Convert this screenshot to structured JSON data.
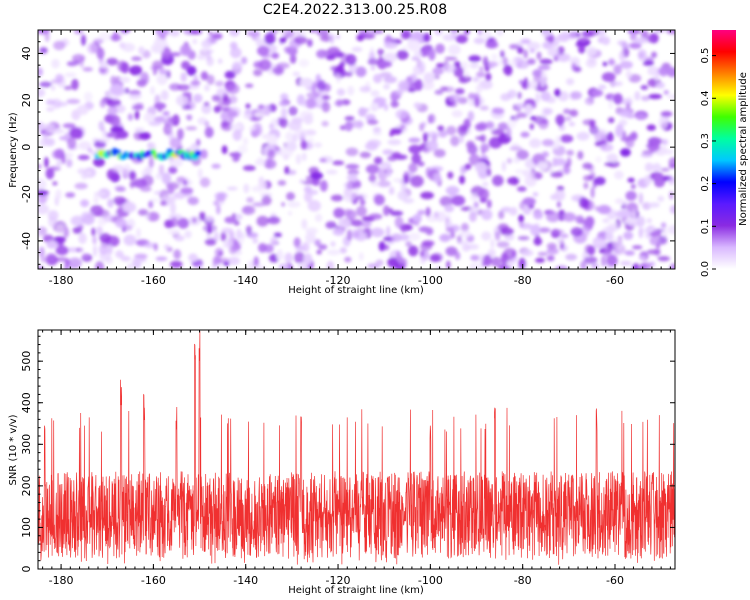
{
  "figure": {
    "title": "C2E4.2022.313.00.25.R08"
  },
  "chart_data": [
    {
      "type": "heatmap",
      "xlabel": "Height of straight line (km)",
      "ylabel": "Frequency (Hz)",
      "xlim": [
        -185,
        -47
      ],
      "ylim": [
        -52,
        50
      ],
      "x_ticks": [
        -180,
        -160,
        -140,
        -120,
        -100,
        -80,
        -60
      ],
      "y_ticks": [
        -40,
        -20,
        0,
        20,
        40
      ],
      "x_tick_labels": [
        "-180",
        "-160",
        "-140",
        "-120",
        "-100",
        "-80",
        "-60"
      ],
      "y_tick_labels": [
        "-40",
        "-20",
        "0",
        "20",
        "40"
      ],
      "colorbar": {
        "label": "Normalized spectral amplitude",
        "range": [
          0,
          0.56
        ],
        "ticks": [
          0.0,
          0.1,
          0.2,
          0.3,
          0.4,
          0.5
        ],
        "tick_labels": [
          "0.0",
          "0.1",
          "0.2",
          "0.3",
          "0.4",
          "0.5"
        ],
        "colors": [
          "#ffffff",
          "#d9b8ff",
          "#8a2be2",
          "#5a1aff",
          "#0000ff",
          "#00c8ff",
          "#00ffa0",
          "#40ff00",
          "#ffff00",
          "#ff8000",
          "#ff0000",
          "#ff0080"
        ]
      },
      "background_level": 0.05,
      "signal_track": {
        "x_range": [
          -172,
          -150
        ],
        "frequency": -3,
        "peak_amplitude": 0.42
      },
      "grid": false
    },
    {
      "type": "line",
      "xlabel": "Height of straight line (km)",
      "ylabel": "SNR (10 * v/v)",
      "xlim": [
        -185,
        -47
      ],
      "ylim": [
        0,
        575
      ],
      "x_ticks": [
        -180,
        -160,
        -140,
        -120,
        -100,
        -80,
        -60
      ],
      "y_ticks": [
        0,
        100,
        200,
        300,
        400,
        500
      ],
      "x_tick_labels": [
        "-180",
        "-160",
        "-140",
        "-120",
        "-100",
        "-80",
        "-60"
      ],
      "y_tick_labels": [
        "0",
        "100",
        "200",
        "300",
        "400",
        "500"
      ],
      "color": "#f03030",
      "baseline_snr": 130,
      "noise_range": [
        50,
        330
      ],
      "peaks": [
        {
          "x": -167,
          "y": 460
        },
        {
          "x": -155,
          "y": 390
        },
        {
          "x": -151,
          "y": 575
        },
        {
          "x": -150,
          "y": 575
        },
        {
          "x": -162,
          "y": 420
        },
        {
          "x": -128,
          "y": 375
        },
        {
          "x": -100,
          "y": 360
        },
        {
          "x": -86,
          "y": 390
        },
        {
          "x": -64,
          "y": 390
        }
      ],
      "grid": false
    }
  ]
}
